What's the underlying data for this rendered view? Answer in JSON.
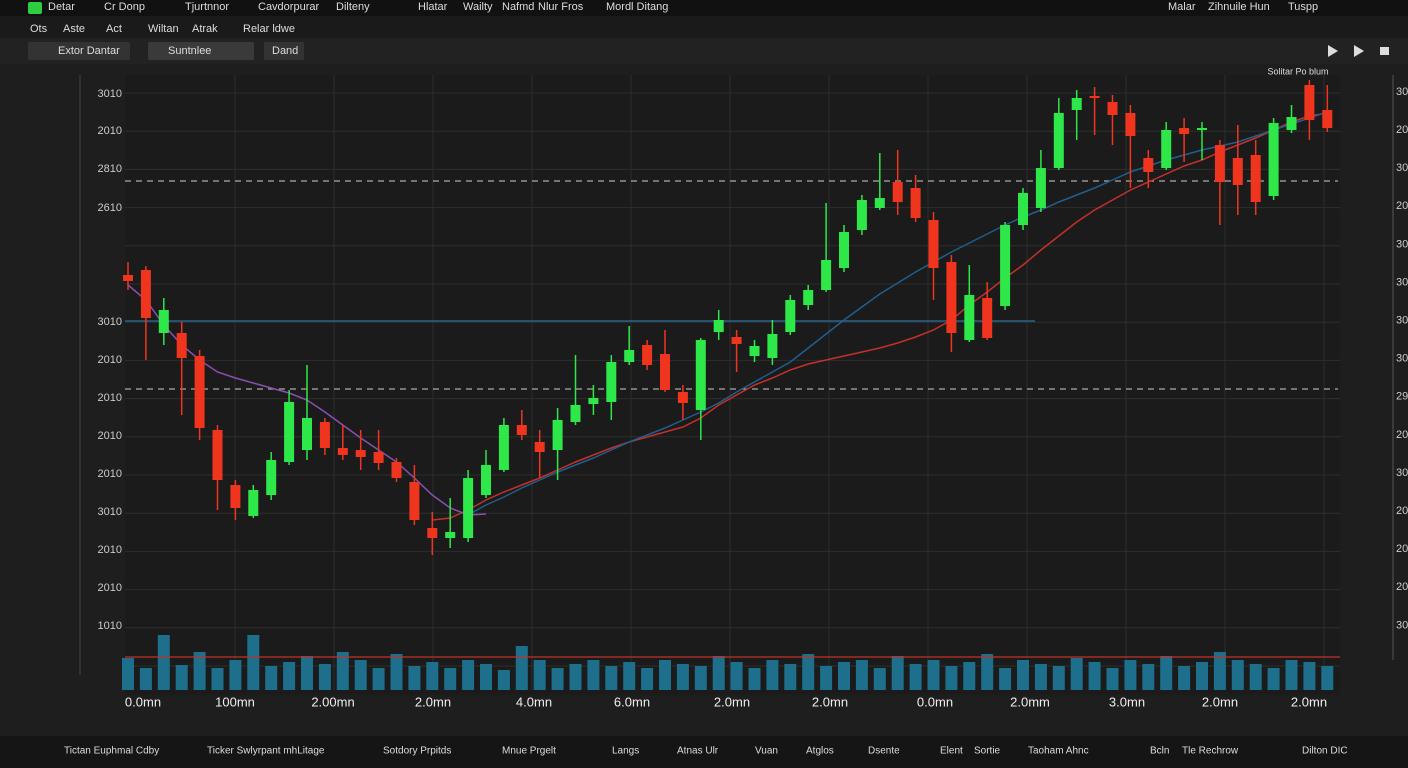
{
  "menu": {
    "left": [
      "Detar",
      "Cr Donp",
      "Tjurtnnor",
      "Cavdorpurar",
      "Dilteny",
      "Hlatar",
      "Wailty",
      "Nafmd",
      "Nlur Fros",
      "Mordl Ditang"
    ],
    "right": [
      "Malar",
      "Zihnuile Hun",
      "Tuspp"
    ]
  },
  "submenu": [
    "Ots",
    "Aste",
    "Act",
    "Wiltan",
    "Atrak",
    "Relar ldwe"
  ],
  "toolbar": {
    "record": "Extor Dantar",
    "select": "Suntnlee",
    "button": "Dand"
  },
  "chart_data": {
    "type": "candlestick",
    "annotation": "Solitar Po blum",
    "left_axis_labels": [
      "3010",
      "2010",
      "2810",
      "2610",
      "3010",
      "2010",
      "2010",
      "2010",
      "2010",
      "3010",
      "2010",
      "2010",
      "1010"
    ],
    "right_axis_labels": [
      "30",
      "20",
      "30",
      "20",
      "30",
      "30",
      "30",
      "30",
      "29",
      "20",
      "30",
      "20",
      "20",
      "20",
      "30"
    ],
    "x_axis_labels": [
      "0.0mn",
      "100mn",
      "2.00mn",
      "2.0mn",
      "4.0mn",
      "6.0mn",
      "2.0mn",
      "2.0mn",
      "0.0mn",
      "2.0mm",
      "3.0mn",
      "2.0mn",
      "2.0mn"
    ],
    "ylim": [
      0,
      620
    ],
    "up_color": "#2ee84a",
    "down_color": "#f0351f",
    "candles": [
      {
        "open": 425,
        "high": 438,
        "low": 410,
        "close": 419
      },
      {
        "open": 430,
        "high": 434,
        "low": 340,
        "close": 382
      },
      {
        "open": 367,
        "high": 402,
        "low": 355,
        "close": 390
      },
      {
        "open": 367,
        "high": 378,
        "low": 285,
        "close": 342
      },
      {
        "open": 344,
        "high": 350,
        "low": 260,
        "close": 272
      },
      {
        "open": 270,
        "high": 275,
        "low": 190,
        "close": 220
      },
      {
        "open": 215,
        "high": 220,
        "low": 180,
        "close": 192
      },
      {
        "open": 184,
        "high": 215,
        "low": 182,
        "close": 210
      },
      {
        "open": 205,
        "high": 248,
        "low": 200,
        "close": 240
      },
      {
        "open": 238,
        "high": 310,
        "low": 235,
        "close": 298
      },
      {
        "open": 250,
        "high": 335,
        "low": 240,
        "close": 282
      },
      {
        "open": 278,
        "high": 282,
        "low": 245,
        "close": 252
      },
      {
        "open": 252,
        "high": 275,
        "low": 240,
        "close": 245
      },
      {
        "open": 250,
        "high": 270,
        "low": 230,
        "close": 243
      },
      {
        "open": 248,
        "high": 270,
        "low": 230,
        "close": 237
      },
      {
        "open": 238,
        "high": 242,
        "low": 218,
        "close": 222
      },
      {
        "open": 218,
        "high": 235,
        "low": 175,
        "close": 180
      },
      {
        "open": 172,
        "high": 188,
        "low": 145,
        "close": 162
      },
      {
        "open": 162,
        "high": 202,
        "low": 152,
        "close": 168
      },
      {
        "open": 162,
        "high": 230,
        "low": 158,
        "close": 222
      },
      {
        "open": 205,
        "high": 250,
        "low": 202,
        "close": 235
      },
      {
        "open": 230,
        "high": 282,
        "low": 228,
        "close": 275
      },
      {
        "open": 275,
        "high": 290,
        "low": 260,
        "close": 265
      },
      {
        "open": 258,
        "high": 270,
        "low": 222,
        "close": 248
      },
      {
        "open": 250,
        "high": 292,
        "low": 220,
        "close": 280
      },
      {
        "open": 278,
        "high": 345,
        "low": 275,
        "close": 295
      },
      {
        "open": 296,
        "high": 315,
        "low": 285,
        "close": 302
      },
      {
        "open": 298,
        "high": 345,
        "low": 280,
        "close": 338
      },
      {
        "open": 338,
        "high": 374,
        "low": 335,
        "close": 350
      },
      {
        "open": 355,
        "high": 360,
        "low": 330,
        "close": 335
      },
      {
        "open": 346,
        "high": 370,
        "low": 308,
        "close": 310
      },
      {
        "open": 308,
        "high": 315,
        "low": 280,
        "close": 297
      },
      {
        "open": 290,
        "high": 362,
        "low": 260,
        "close": 360
      },
      {
        "open": 368,
        "high": 390,
        "low": 360,
        "close": 380
      },
      {
        "open": 363,
        "high": 370,
        "low": 328,
        "close": 356
      },
      {
        "open": 344,
        "high": 360,
        "low": 338,
        "close": 354
      },
      {
        "open": 342,
        "high": 380,
        "low": 335,
        "close": 366
      },
      {
        "open": 368,
        "high": 405,
        "low": 365,
        "close": 400
      },
      {
        "open": 395,
        "high": 415,
        "low": 390,
        "close": 410
      },
      {
        "open": 410,
        "high": 497,
        "low": 408,
        "close": 440
      },
      {
        "open": 432,
        "high": 475,
        "low": 428,
        "close": 468
      },
      {
        "open": 470,
        "high": 505,
        "low": 465,
        "close": 500
      },
      {
        "open": 492,
        "high": 547,
        "low": 490,
        "close": 502
      },
      {
        "open": 518,
        "high": 550,
        "low": 485,
        "close": 498
      },
      {
        "open": 512,
        "high": 525,
        "low": 478,
        "close": 482
      },
      {
        "open": 480,
        "high": 488,
        "low": 400,
        "close": 432
      },
      {
        "open": 438,
        "high": 445,
        "low": 348,
        "close": 367
      },
      {
        "open": 360,
        "high": 435,
        "low": 358,
        "close": 405
      },
      {
        "open": 402,
        "high": 418,
        "low": 360,
        "close": 362
      },
      {
        "open": 394,
        "high": 478,
        "low": 390,
        "close": 475
      },
      {
        "open": 475,
        "high": 512,
        "low": 470,
        "close": 507
      },
      {
        "open": 492,
        "high": 550,
        "low": 488,
        "close": 532
      },
      {
        "open": 532,
        "high": 602,
        "low": 530,
        "close": 587
      },
      {
        "open": 590,
        "high": 610,
        "low": 560,
        "close": 602
      },
      {
        "open": 604,
        "high": 613,
        "low": 565,
        "close": 602
      },
      {
        "open": 598,
        "high": 605,
        "low": 555,
        "close": 585
      },
      {
        "open": 587,
        "high": 595,
        "low": 512,
        "close": 564
      },
      {
        "open": 542,
        "high": 550,
        "low": 512,
        "close": 528
      },
      {
        "open": 532,
        "high": 578,
        "low": 530,
        "close": 570
      },
      {
        "open": 572,
        "high": 582,
        "low": 538,
        "close": 566
      },
      {
        "open": 570,
        "high": 578,
        "low": 540,
        "close": 572
      },
      {
        "open": 555,
        "high": 560,
        "low": 475,
        "close": 518
      },
      {
        "open": 542,
        "high": 575,
        "low": 485,
        "close": 515
      },
      {
        "open": 545,
        "high": 560,
        "low": 485,
        "close": 498
      },
      {
        "open": 504,
        "high": 582,
        "low": 500,
        "close": 577
      },
      {
        "open": 570,
        "high": 595,
        "low": 567,
        "close": 583
      },
      {
        "open": 615,
        "high": 620,
        "low": 560,
        "close": 580
      },
      {
        "open": 590,
        "high": 615,
        "low": 568,
        "close": 572
      }
    ],
    "series": [
      {
        "color": "#c4302a",
        "values": [
          null,
          null,
          null,
          null,
          null,
          null,
          null,
          null,
          null,
          null,
          null,
          null,
          null,
          null,
          null,
          null,
          null,
          180,
          182,
          190,
          200,
          208,
          215,
          222,
          230,
          238,
          245,
          252,
          258,
          263,
          268,
          273,
          282,
          295,
          305,
          315,
          322,
          330,
          336,
          340,
          344,
          348,
          352,
          357,
          363,
          370,
          380,
          395,
          408,
          422,
          435,
          450,
          464,
          478,
          490,
          500,
          510,
          518,
          526,
          534,
          540,
          548,
          555,
          562,
          570,
          578,
          584,
          587
        ]
      },
      {
        "color": "#1f5f8f",
        "values": [
          null,
          null,
          null,
          null,
          null,
          null,
          null,
          null,
          null,
          null,
          null,
          null,
          null,
          null,
          null,
          null,
          null,
          null,
          null,
          185,
          195,
          203,
          212,
          220,
          228,
          235,
          242,
          250,
          258,
          265,
          272,
          280,
          288,
          297,
          308,
          318,
          328,
          338,
          352,
          366,
          380,
          393,
          406,
          417,
          428,
          438,
          448,
          457,
          466,
          475,
          483,
          490,
          498,
          505,
          512,
          520,
          528,
          534,
          540,
          545,
          550,
          554,
          558,
          564,
          570,
          576,
          582,
          588
        ]
      },
      {
        "color": "#8a4fb0",
        "values": [
          415,
          400,
          375,
          355,
          340,
          328,
          322,
          317,
          312,
          307,
          300,
          288,
          275,
          262,
          250,
          238,
          222,
          205,
          192,
          185,
          186,
          null,
          null,
          null,
          null,
          null,
          null,
          null,
          null,
          null,
          null,
          null,
          null,
          null,
          null,
          null,
          null,
          null,
          null,
          null,
          null,
          null,
          null,
          null,
          null,
          null,
          null,
          null,
          null,
          null,
          null,
          null,
          null,
          null,
          null,
          null,
          null,
          null,
          null,
          null,
          null,
          null,
          null,
          null,
          null,
          null,
          null,
          null
        ]
      }
    ],
    "levels": [
      {
        "value": 519,
        "style": "dashed"
      },
      {
        "value": 311,
        "style": "dashed"
      },
      {
        "value": 379,
        "style": "solid"
      }
    ],
    "volume": {
      "color": "#1d6f8c",
      "ylim": [
        0,
        60
      ],
      "level": 33,
      "values": [
        32,
        22,
        55,
        25,
        38,
        22,
        30,
        55,
        24,
        28,
        34,
        26,
        38,
        30,
        22,
        36,
        24,
        28,
        22,
        30,
        26,
        20,
        44,
        30,
        22,
        26,
        30,
        24,
        28,
        22,
        30,
        26,
        24,
        34,
        28,
        22,
        30,
        26,
        36,
        24,
        28,
        30,
        22,
        34,
        26,
        30,
        24,
        28,
        36,
        22,
        30,
        26,
        24,
        32,
        28,
        22,
        30,
        26,
        34,
        24,
        28,
        38,
        30,
        26,
        22,
        30,
        28,
        24
      ]
    }
  },
  "footer": [
    "Tictan Euphmal Cdby",
    "Ticker Swlyrpant mhLitage",
    "Sotdory Prpitds",
    "Mnue Prgelt",
    "Langs",
    "Atnas Ulr",
    "Vuan",
    "Atglos",
    "Dsente",
    "Elent",
    "Sortie",
    "Taoham Ahnc",
    "Bcln",
    "Tle Rechrow",
    "Dilton DIC"
  ]
}
